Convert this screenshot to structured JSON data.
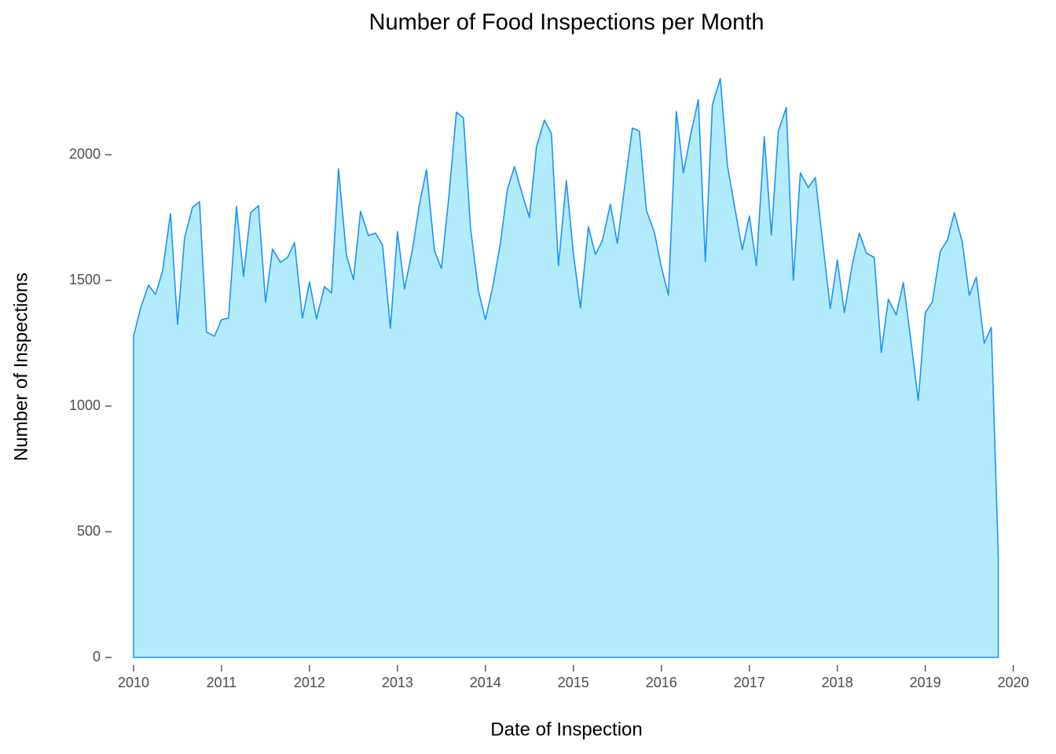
{
  "chart_data": {
    "type": "area",
    "title": "Number of Food Inspections per Month",
    "x_label": "Date of Inspection",
    "y_label": "Number of Inspections",
    "fill": "#b2ecfc",
    "color": "#1e90ff",
    "x": [
      2010,
      2010.08,
      2010.17,
      2010.25,
      2010.33,
      2010.42,
      2010.5,
      2010.58,
      2010.67,
      2010.75,
      2010.83,
      2010.92,
      2011,
      2011.08,
      2011.17,
      2011.25,
      2011.33,
      2011.42,
      2011.5,
      2011.58,
      2011.67,
      2011.75,
      2011.83,
      2011.92,
      2012,
      2012.08,
      2012.17,
      2012.25,
      2012.33,
      2012.42,
      2012.5,
      2012.58,
      2012.67,
      2012.75,
      2012.83,
      2012.92,
      2013,
      2013.08,
      2013.17,
      2013.25,
      2013.33,
      2013.42,
      2013.5,
      2013.58,
      2013.67,
      2013.75,
      2013.83,
      2013.92,
      2014,
      2014.08,
      2014.17,
      2014.25,
      2014.33,
      2014.42,
      2014.5,
      2014.58,
      2014.67,
      2014.75,
      2014.83,
      2014.92,
      2015,
      2015.08,
      2015.17,
      2015.25,
      2015.33,
      2015.42,
      2015.5,
      2015.58,
      2015.67,
      2015.75,
      2015.83,
      2015.92,
      2016,
      2016.08,
      2016.17,
      2016.25,
      2016.33,
      2016.42,
      2016.5,
      2016.58,
      2016.67,
      2016.75,
      2016.83,
      2016.92,
      2017,
      2017.08,
      2017.17,
      2017.25,
      2017.33,
      2017.42,
      2017.5,
      2017.58,
      2017.67,
      2017.75,
      2017.83,
      2017.92,
      2018,
      2018.08,
      2018.17,
      2018.25,
      2018.33,
      2018.42,
      2018.5,
      2018.58,
      2018.67,
      2018.75,
      2018.83,
      2018.92,
      2019,
      2019.08,
      2019.17,
      2019.25,
      2019.33,
      2019.42,
      2019.5,
      2019.58,
      2019.67,
      2019.75,
      2019.83
    ],
    "values": [
      1278,
      1390,
      1481,
      1444,
      1538,
      1766,
      1325,
      1669,
      1791,
      1813,
      1294,
      1278,
      1344,
      1350,
      1794,
      1516,
      1769,
      1797,
      1413,
      1625,
      1572,
      1591,
      1650,
      1350,
      1494,
      1347,
      1475,
      1450,
      1944,
      1600,
      1503,
      1775,
      1678,
      1688,
      1641,
      1309,
      1694,
      1466,
      1622,
      1803,
      1941,
      1619,
      1547,
      1819,
      2169,
      2147,
      1709,
      1459,
      1344,
      1469,
      1647,
      1863,
      1953,
      1841,
      1750,
      2031,
      2138,
      2084,
      1559,
      1897,
      1606,
      1391,
      1713,
      1603,
      1659,
      1803,
      1647,
      1866,
      2106,
      2094,
      1778,
      1691,
      1553,
      1441,
      2172,
      1928,
      2075,
      2219,
      1575,
      2200,
      2303,
      1959,
      1797,
      1622,
      1756,
      1559,
      2072,
      1681,
      2094,
      2188,
      1500,
      1928,
      1869,
      1909,
      1663,
      1388,
      1581,
      1372,
      1563,
      1688,
      1609,
      1591,
      1213,
      1425,
      1363,
      1491,
      1278,
      1022,
      1372,
      1413,
      1616,
      1659,
      1769,
      1653,
      1441,
      1513,
      1250,
      1313,
      400
    ],
    "xlim": [
      2009.5,
      2020.2
    ],
    "ylim": [
      -100,
      2350
    ],
    "xticks": [
      2010,
      2011,
      2012,
      2013,
      2014,
      2015,
      2016,
      2017,
      2018,
      2019,
      2020
    ],
    "yticks": [
      0,
      500,
      1000,
      1500,
      2000
    ]
  }
}
